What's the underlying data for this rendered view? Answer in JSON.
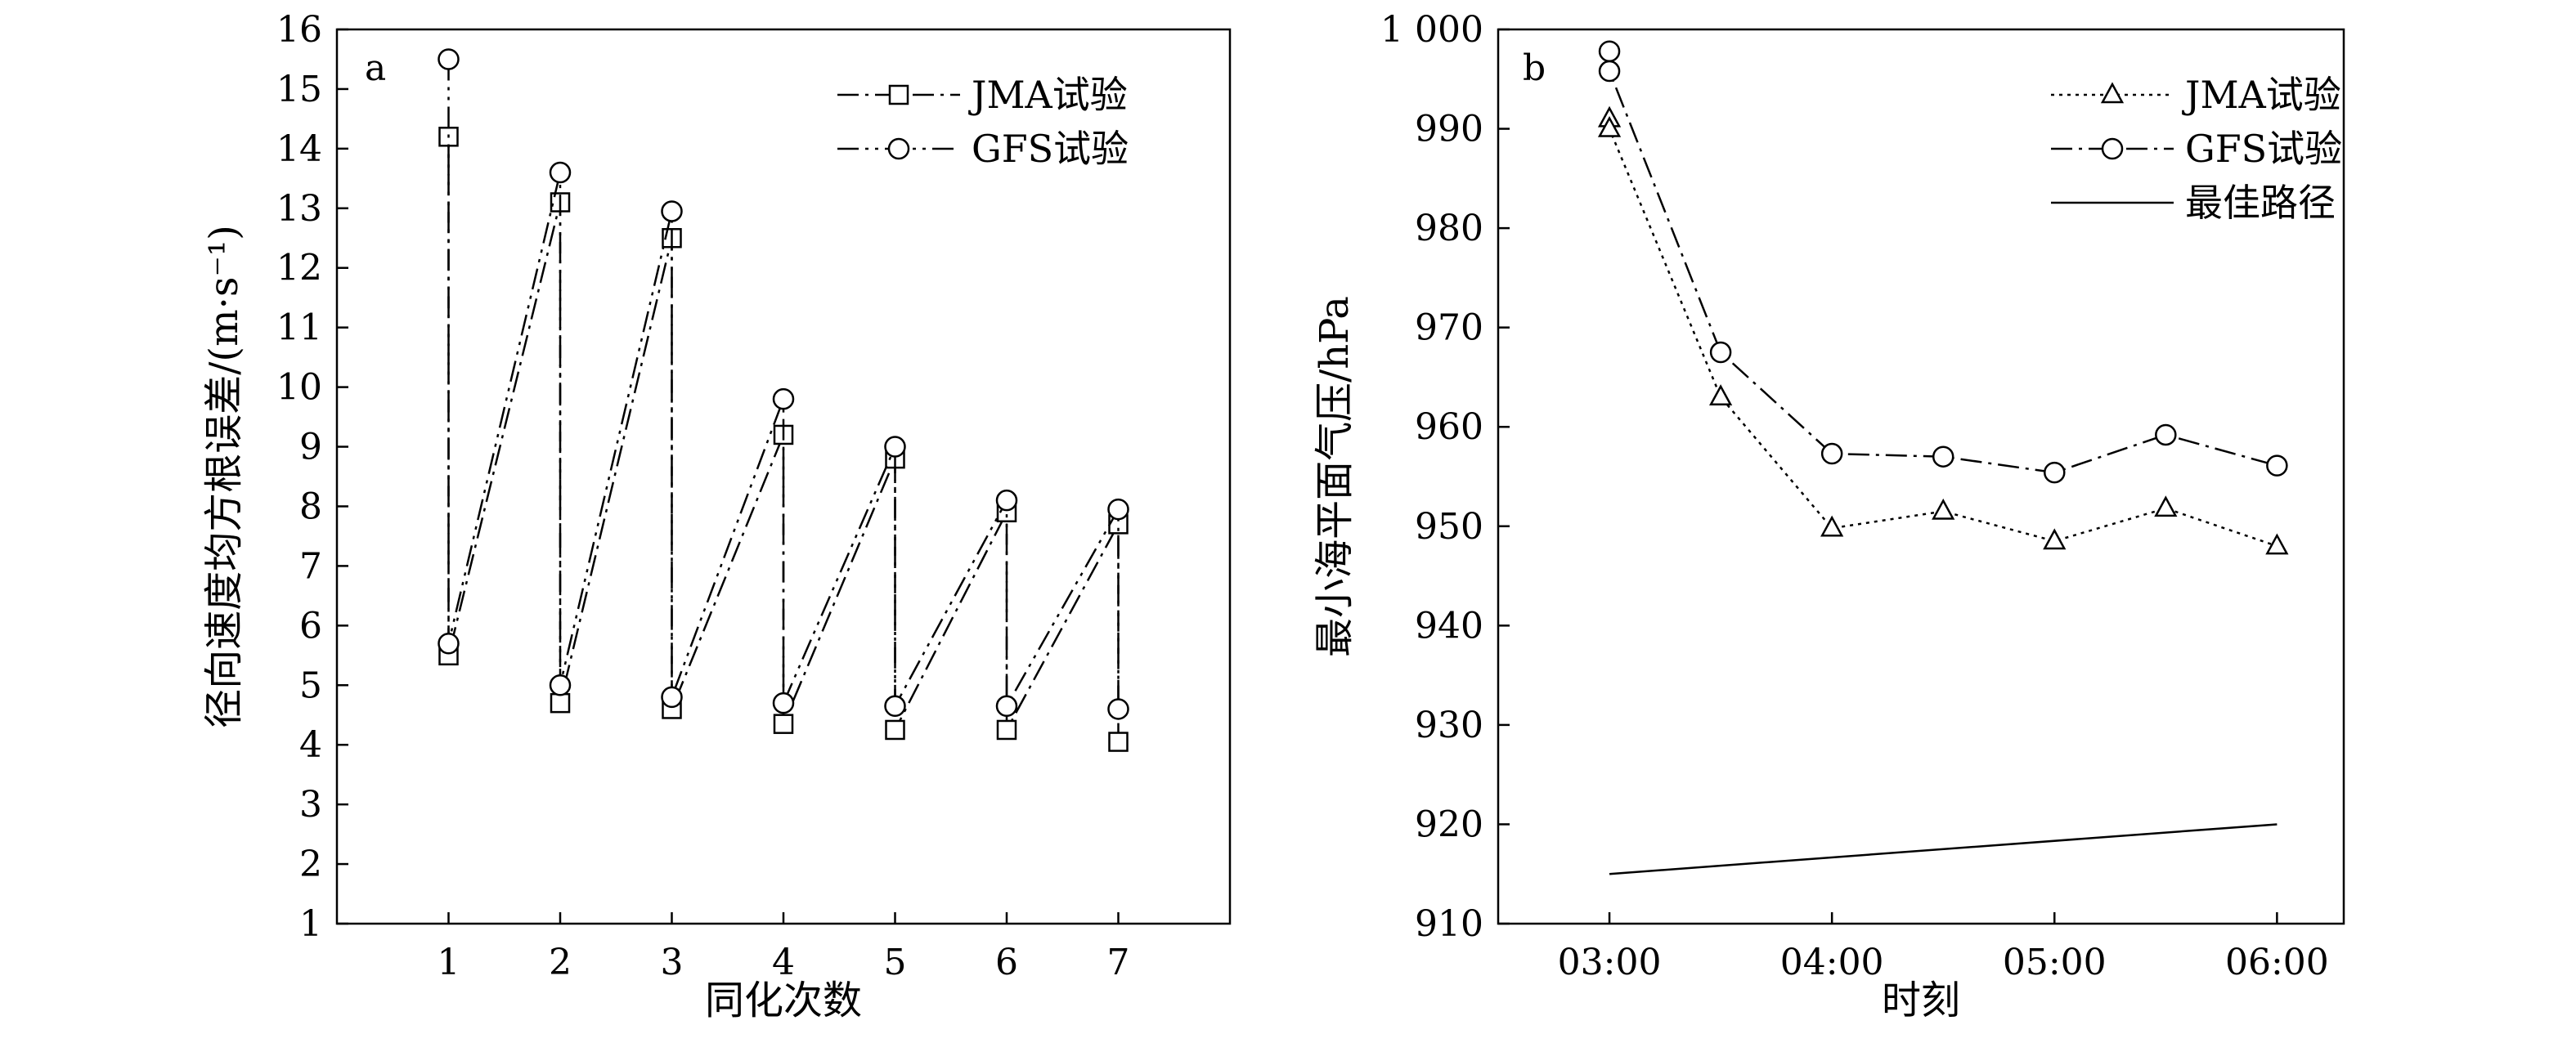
{
  "chart_data": [
    {
      "panel_label": "a",
      "type": "line",
      "xlabel": "同化次数",
      "ylabel": "径向速度均方根误差/(m·s⁻¹)",
      "xlim": [
        0,
        8
      ],
      "ylim": [
        1,
        16
      ],
      "x_ticks": [
        "1",
        "2",
        "3",
        "4",
        "5",
        "6",
        "7"
      ],
      "y_ticks": [
        "1",
        "2",
        "3",
        "4",
        "5",
        "6",
        "7",
        "8",
        "9",
        "10",
        "11",
        "12",
        "13",
        "14",
        "15",
        "16"
      ],
      "legend_position": "top-right",
      "series": [
        {
          "name": "JMA试验",
          "marker": "square",
          "dash": "dash-dot",
          "points": [
            [
              1,
              14.2
            ],
            [
              1,
              5.5
            ],
            [
              2,
              13.1
            ],
            [
              2,
              4.7
            ],
            [
              3,
              12.5
            ],
            [
              3,
              4.6
            ],
            [
              4,
              9.2
            ],
            [
              4,
              4.35
            ],
            [
              5,
              8.8
            ],
            [
              5,
              4.25
            ],
            [
              6,
              7.9
            ],
            [
              6,
              4.25
            ],
            [
              7,
              7.7
            ],
            [
              7,
              4.05
            ]
          ]
        },
        {
          "name": "GFS试验",
          "marker": "circle",
          "dash": "dash-dot-dot",
          "points": [
            [
              1,
              15.5
            ],
            [
              1,
              5.7
            ],
            [
              2,
              13.6
            ],
            [
              2,
              5.0
            ],
            [
              3,
              12.95
            ],
            [
              3,
              4.8
            ],
            [
              4,
              9.8
            ],
            [
              4,
              4.7
            ],
            [
              5,
              9.0
            ],
            [
              5,
              4.65
            ],
            [
              6,
              8.1
            ],
            [
              6,
              4.65
            ],
            [
              7,
              7.95
            ],
            [
              7,
              4.6
            ]
          ]
        }
      ]
    },
    {
      "panel_label": "b",
      "type": "line",
      "xlabel": "时刻",
      "ylabel": "最小海平面气压/hPa",
      "xlim": [
        2.5,
        6.3
      ],
      "ylim": [
        910,
        1000
      ],
      "x_ticks": [
        "03:00",
        "04:00",
        "05:00",
        "06:00"
      ],
      "x_tick_values": [
        3,
        4,
        5,
        6
      ],
      "y_ticks": [
        "910",
        "920",
        "930",
        "940",
        "950",
        "960",
        "970",
        "980",
        "990",
        "1 000"
      ],
      "legend_position": "top-right",
      "series": [
        {
          "name": "JMA试验",
          "marker": "triangle",
          "dash": "dotted",
          "points": [
            [
              3,
              991
            ],
            [
              3,
              990
            ],
            [
              3.5,
              963
            ],
            [
              4,
              949.8
            ],
            [
              4.5,
              951.5
            ],
            [
              5,
              948.5
            ],
            [
              5.5,
              951.8
            ],
            [
              6,
              948
            ]
          ]
        },
        {
          "name": "GFS试验",
          "marker": "circle",
          "dash": "dash-dot",
          "points": [
            [
              3,
              997.8
            ],
            [
              3,
              995.8
            ],
            [
              3.5,
              967.5
            ],
            [
              4,
              957.3
            ],
            [
              4.5,
              957
            ],
            [
              5,
              955.4
            ],
            [
              5.5,
              959.2
            ],
            [
              6,
              956.1
            ]
          ]
        },
        {
          "name": "最佳路径",
          "marker": "none",
          "dash": "solid",
          "points": [
            [
              3,
              915
            ],
            [
              6,
              920
            ]
          ]
        }
      ]
    }
  ]
}
